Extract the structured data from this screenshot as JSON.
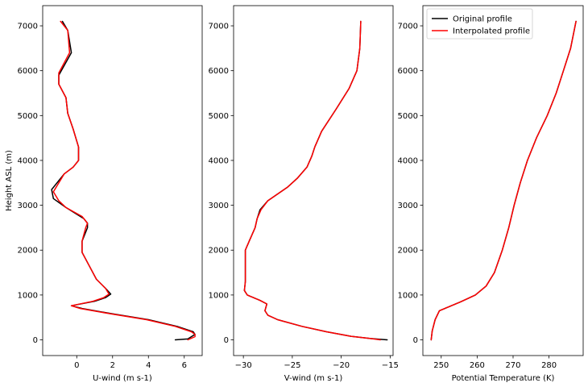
{
  "chart_data": [
    {
      "type": "line",
      "xlabel": "U-wind (m s-1)",
      "ylabel": "Height ASL (m)",
      "xlim": [
        -1.9,
        7.0
      ],
      "ylim": [
        -350,
        7450
      ],
      "xticks": [
        0,
        2,
        4,
        6
      ],
      "yticks": [
        0,
        1000,
        2000,
        3000,
        4000,
        5000,
        6000,
        7000
      ],
      "grid": false,
      "series": [
        {
          "name": "Original profile",
          "color": "#000000",
          "points": [
            [
              5.5,
              0
            ],
            [
              6.2,
              20
            ],
            [
              6.6,
              120
            ],
            [
              6.5,
              180
            ],
            [
              5.6,
              300
            ],
            [
              4.0,
              450
            ],
            [
              2.0,
              580
            ],
            [
              0.3,
              700
            ],
            [
              -0.3,
              760
            ],
            [
              1.0,
              860
            ],
            [
              1.6,
              940
            ],
            [
              1.9,
              1020
            ],
            [
              1.6,
              1150
            ],
            [
              1.1,
              1350
            ],
            [
              0.7,
              1650
            ],
            [
              0.3,
              1950
            ],
            [
              0.3,
              2200
            ],
            [
              0.6,
              2500
            ],
            [
              0.6,
              2600
            ],
            [
              0.4,
              2700
            ],
            [
              -0.6,
              2950
            ],
            [
              -1.3,
              3150
            ],
            [
              -1.4,
              3350
            ],
            [
              -0.7,
              3700
            ],
            [
              -0.2,
              3850
            ],
            [
              0.1,
              4000
            ],
            [
              0.1,
              4300
            ],
            [
              -0.2,
              4700
            ],
            [
              -0.5,
              5050
            ],
            [
              -0.6,
              5400
            ],
            [
              -1.0,
              5700
            ],
            [
              -1.0,
              5900
            ],
            [
              -0.3,
              6400
            ],
            [
              -0.5,
              6900
            ],
            [
              -0.8,
              7100
            ]
          ]
        },
        {
          "name": "Interpolated profile",
          "color": "#ff0000",
          "points": [
            [
              6.2,
              0
            ],
            [
              6.6,
              70
            ],
            [
              6.6,
              120
            ],
            [
              6.4,
              180
            ],
            [
              5.5,
              300
            ],
            [
              3.9,
              450
            ],
            [
              1.9,
              580
            ],
            [
              0.2,
              700
            ],
            [
              -0.3,
              760
            ],
            [
              0.9,
              860
            ],
            [
              1.5,
              940
            ],
            [
              1.8,
              1020
            ],
            [
              1.6,
              1150
            ],
            [
              1.1,
              1350
            ],
            [
              0.7,
              1650
            ],
            [
              0.3,
              1950
            ],
            [
              0.3,
              2200
            ],
            [
              0.5,
              2500
            ],
            [
              0.6,
              2600
            ],
            [
              0.3,
              2750
            ],
            [
              -0.6,
              2950
            ],
            [
              -1.0,
              3100
            ],
            [
              -1.3,
              3300
            ],
            [
              -0.7,
              3700
            ],
            [
              -0.2,
              3850
            ],
            [
              0.1,
              4000
            ],
            [
              0.1,
              4300
            ],
            [
              -0.2,
              4700
            ],
            [
              -0.5,
              5050
            ],
            [
              -0.6,
              5400
            ],
            [
              -1.0,
              5700
            ],
            [
              -1.0,
              5950
            ],
            [
              -0.4,
              6400
            ],
            [
              -0.5,
              6900
            ],
            [
              -0.9,
              7100
            ]
          ]
        }
      ]
    },
    {
      "type": "line",
      "xlabel": "V-wind (m s-1)",
      "ylabel": "",
      "xlim": [
        -31.0,
        -14.7
      ],
      "ylim": [
        -350,
        7450
      ],
      "xticks": [
        -30,
        -25,
        -20,
        -15
      ],
      "yticks": [
        0,
        1000,
        2000,
        3000,
        4000,
        5000,
        6000,
        7000
      ],
      "grid": false,
      "series": [
        {
          "name": "Original profile",
          "color": "#000000",
          "points": [
            [
              -15.3,
              0
            ],
            [
              -17.0,
              30
            ],
            [
              -19.0,
              80
            ],
            [
              -21.5,
              180
            ],
            [
              -24.0,
              300
            ],
            [
              -26.5,
              450
            ],
            [
              -27.5,
              550
            ],
            [
              -27.8,
              650
            ],
            [
              -27.6,
              800
            ],
            [
              -28.3,
              880
            ],
            [
              -29.6,
              1000
            ],
            [
              -29.9,
              1100
            ],
            [
              -29.8,
              1300
            ],
            [
              -29.8,
              1700
            ],
            [
              -29.8,
              2000
            ],
            [
              -29.4,
              2200
            ],
            [
              -28.8,
              2500
            ],
            [
              -28.6,
              2700
            ],
            [
              -28.3,
              2900
            ],
            [
              -27.5,
              3100
            ],
            [
              -25.5,
              3400
            ],
            [
              -24.5,
              3600
            ],
            [
              -23.5,
              3850
            ],
            [
              -23.0,
              4100
            ],
            [
              -22.7,
              4300
            ],
            [
              -22.0,
              4650
            ],
            [
              -20.5,
              5150
            ],
            [
              -19.2,
              5600
            ],
            [
              -18.4,
              6000
            ],
            [
              -18.1,
              6500
            ],
            [
              -18.0,
              7100
            ]
          ]
        },
        {
          "name": "Interpolated profile",
          "color": "#ff0000",
          "points": [
            [
              -16.0,
              0
            ],
            [
              -17.0,
              30
            ],
            [
              -19.0,
              80
            ],
            [
              -21.5,
              180
            ],
            [
              -24.0,
              300
            ],
            [
              -26.5,
              450
            ],
            [
              -27.5,
              550
            ],
            [
              -27.8,
              650
            ],
            [
              -27.6,
              800
            ],
            [
              -28.3,
              880
            ],
            [
              -29.6,
              1000
            ],
            [
              -29.9,
              1100
            ],
            [
              -29.8,
              1300
            ],
            [
              -29.8,
              1700
            ],
            [
              -29.8,
              2000
            ],
            [
              -29.4,
              2200
            ],
            [
              -28.8,
              2500
            ],
            [
              -28.6,
              2700
            ],
            [
              -28.2,
              2900
            ],
            [
              -27.5,
              3100
            ],
            [
              -25.5,
              3400
            ],
            [
              -24.5,
              3600
            ],
            [
              -23.5,
              3850
            ],
            [
              -23.0,
              4100
            ],
            [
              -22.7,
              4300
            ],
            [
              -22.0,
              4650
            ],
            [
              -20.5,
              5150
            ],
            [
              -19.2,
              5600
            ],
            [
              -18.4,
              6000
            ],
            [
              -18.1,
              6500
            ],
            [
              -18.0,
              7100
            ]
          ]
        }
      ]
    },
    {
      "type": "line",
      "xlabel": "Potential Temperature (K)",
      "ylabel": "",
      "xlim": [
        244.9,
        289.5
      ],
      "ylim": [
        -350,
        7450
      ],
      "xticks": [
        250,
        260,
        270,
        280
      ],
      "yticks": [
        0,
        1000,
        2000,
        3000,
        4000,
        5000,
        6000,
        7000
      ],
      "grid": false,
      "legend": {
        "position": "top-left",
        "entries": [
          "Original profile",
          "Interpolated profile"
        ]
      },
      "series": [
        {
          "name": "Original profile",
          "color": "#000000",
          "points": [
            [
              247.2,
              0
            ],
            [
              247.5,
              200
            ],
            [
              248.3,
              450
            ],
            [
              249.5,
              650
            ],
            [
              252.5,
              750
            ],
            [
              255.5,
              850
            ],
            [
              259.5,
              1000
            ],
            [
              262.5,
              1200
            ],
            [
              264.8,
              1500
            ],
            [
              267.0,
              2000
            ],
            [
              268.8,
              2500
            ],
            [
              270.3,
              3000
            ],
            [
              272.0,
              3500
            ],
            [
              274.0,
              4000
            ],
            [
              276.5,
              4500
            ],
            [
              279.5,
              5000
            ],
            [
              282.0,
              5500
            ],
            [
              284.0,
              6000
            ],
            [
              286.0,
              6500
            ],
            [
              287.5,
              7100
            ]
          ]
        },
        {
          "name": "Interpolated profile",
          "color": "#ff0000",
          "points": [
            [
              247.2,
              0
            ],
            [
              247.5,
              200
            ],
            [
              248.3,
              450
            ],
            [
              249.5,
              650
            ],
            [
              252.5,
              750
            ],
            [
              255.5,
              850
            ],
            [
              259.5,
              1000
            ],
            [
              262.5,
              1200
            ],
            [
              264.8,
              1500
            ],
            [
              267.0,
              2000
            ],
            [
              268.8,
              2500
            ],
            [
              270.3,
              3000
            ],
            [
              272.0,
              3500
            ],
            [
              274.0,
              4000
            ],
            [
              276.5,
              4500
            ],
            [
              279.5,
              5000
            ],
            [
              282.0,
              5500
            ],
            [
              284.0,
              6000
            ],
            [
              286.0,
              6500
            ],
            [
              287.5,
              7100
            ]
          ]
        }
      ]
    }
  ]
}
